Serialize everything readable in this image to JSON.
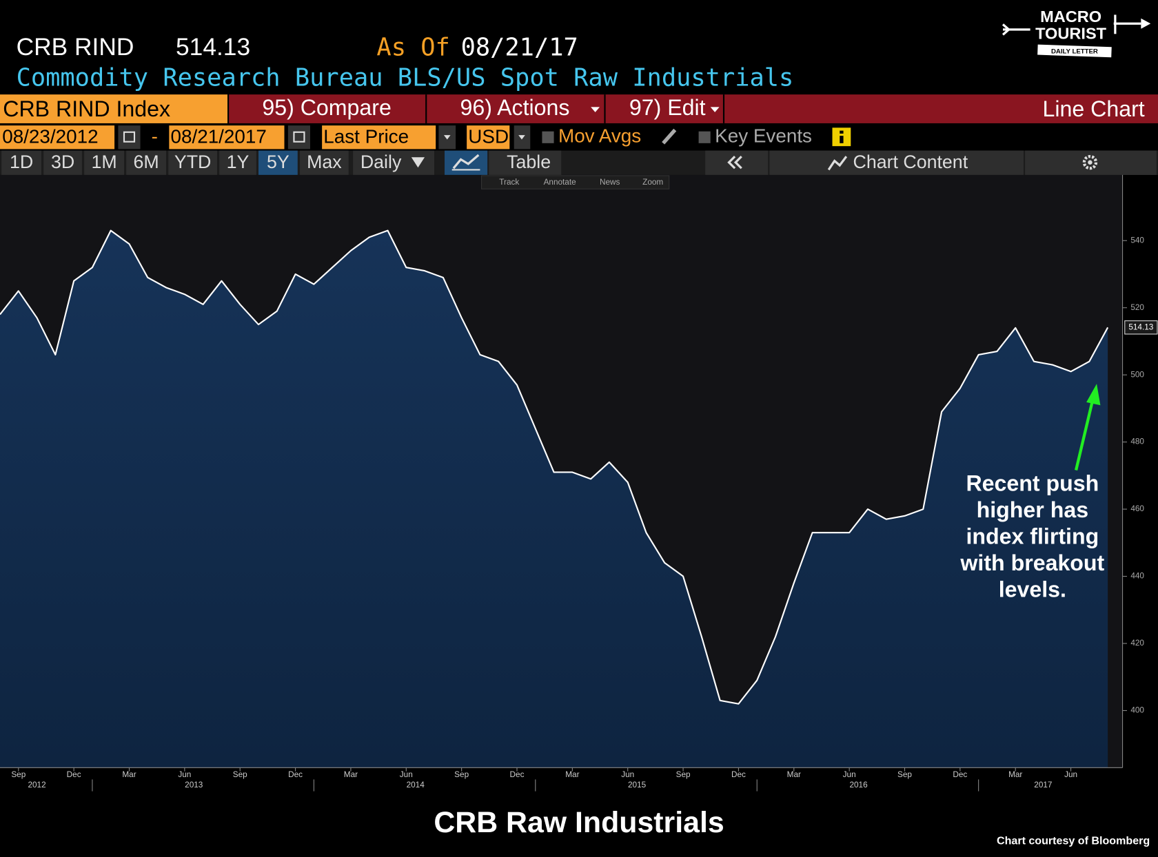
{
  "header": {
    "ticker": "CRB RIND",
    "price": "514.13",
    "as_of_label": "As Of",
    "as_of_date": "08/21/17",
    "description": "Commodity Research Bureau BLS/US Spot Raw Industrials"
  },
  "toolbar": {
    "security": "CRB RIND Index",
    "compare": "95) Compare",
    "actions": "96) Actions",
    "edit": "97) Edit",
    "chart_type": "Line Chart",
    "start_date": "08/23/2012",
    "date_separator": "-",
    "end_date": "08/21/2017",
    "field": "Last Price",
    "currency": "USD",
    "mov_avgs": "Mov Avgs",
    "key_events": "Key Events",
    "ranges": [
      "1D",
      "3D",
      "1M",
      "6M",
      "YTD",
      "1Y",
      "5Y",
      "Max"
    ],
    "frequency": "Daily",
    "table": "Table",
    "chart_content": "Chart Content",
    "tools": [
      "Track",
      "Annotate",
      "News",
      "Zoom"
    ]
  },
  "logo": {
    "line1": "MACRO",
    "line2": "TOURIST",
    "line3": "DAILY LETTER"
  },
  "chart_data": {
    "type": "line",
    "x": [
      "2012-08",
      "2012-09",
      "2012-10",
      "2012-11",
      "2012-12",
      "2013-01",
      "2013-02",
      "2013-03",
      "2013-04",
      "2013-05",
      "2013-06",
      "2013-07",
      "2013-08",
      "2013-09",
      "2013-10",
      "2013-11",
      "2013-12",
      "2014-01",
      "2014-02",
      "2014-03",
      "2014-04",
      "2014-05",
      "2014-06",
      "2014-07",
      "2014-08",
      "2014-09",
      "2014-10",
      "2014-11",
      "2014-12",
      "2015-01",
      "2015-02",
      "2015-03",
      "2015-04",
      "2015-05",
      "2015-06",
      "2015-07",
      "2015-08",
      "2015-09",
      "2015-10",
      "2015-11",
      "2015-12",
      "2016-01",
      "2016-02",
      "2016-03",
      "2016-04",
      "2016-05",
      "2016-06",
      "2016-07",
      "2016-08",
      "2016-09",
      "2016-10",
      "2016-11",
      "2016-12",
      "2017-01",
      "2017-02",
      "2017-03",
      "2017-04",
      "2017-05",
      "2017-06",
      "2017-07",
      "2017-08"
    ],
    "series": [
      {
        "name": "CRB RIND Index",
        "color": "#ffffff",
        "area_color": "#133052",
        "values": [
          518,
          525,
          517,
          506,
          528,
          532,
          543,
          539,
          529,
          526,
          524,
          521,
          528,
          521,
          515,
          519,
          530,
          527,
          532,
          537,
          541,
          543,
          532,
          531,
          529,
          517,
          506,
          504,
          497,
          484,
          471,
          471,
          469,
          474,
          468,
          453,
          444,
          440,
          422,
          403,
          402,
          409,
          422,
          438,
          453,
          453,
          453,
          460,
          457,
          458,
          460,
          489,
          496,
          506,
          507,
          514,
          504,
          503,
          501,
          504,
          514.13
        ]
      }
    ],
    "ylim": [
      383,
      560
    ],
    "yticks": [
      400,
      420,
      440,
      460,
      480,
      500,
      520,
      540
    ],
    "xticks": [
      {
        "value": "2012-09",
        "label": "Sep"
      },
      {
        "value": "2012-12",
        "label": "Dec"
      },
      {
        "value": "2013-03",
        "label": "Mar"
      },
      {
        "value": "2013-06",
        "label": "Jun"
      },
      {
        "value": "2013-09",
        "label": "Sep"
      },
      {
        "value": "2013-12",
        "label": "Dec"
      },
      {
        "value": "2014-03",
        "label": "Mar"
      },
      {
        "value": "2014-06",
        "label": "Jun"
      },
      {
        "value": "2014-09",
        "label": "Sep"
      },
      {
        "value": "2014-12",
        "label": "Dec"
      },
      {
        "value": "2015-03",
        "label": "Mar"
      },
      {
        "value": "2015-06",
        "label": "Jun"
      },
      {
        "value": "2015-09",
        "label": "Sep"
      },
      {
        "value": "2015-12",
        "label": "Dec"
      },
      {
        "value": "2016-03",
        "label": "Mar"
      },
      {
        "value": "2016-06",
        "label": "Jun"
      },
      {
        "value": "2016-09",
        "label": "Sep"
      },
      {
        "value": "2016-12",
        "label": "Dec"
      },
      {
        "value": "2017-03",
        "label": "Mar"
      },
      {
        "value": "2017-06",
        "label": "Jun"
      }
    ],
    "xyears": [
      "2012",
      "2013",
      "2014",
      "2015",
      "2016",
      "2017"
    ],
    "annotation": [
      "Recent push",
      "higher has",
      "index flirting",
      "with breakout",
      "levels."
    ],
    "annotation_color": "#22ee22",
    "title": "CRB Raw Industrials",
    "source": "Chart courtesy of Bloomberg"
  }
}
